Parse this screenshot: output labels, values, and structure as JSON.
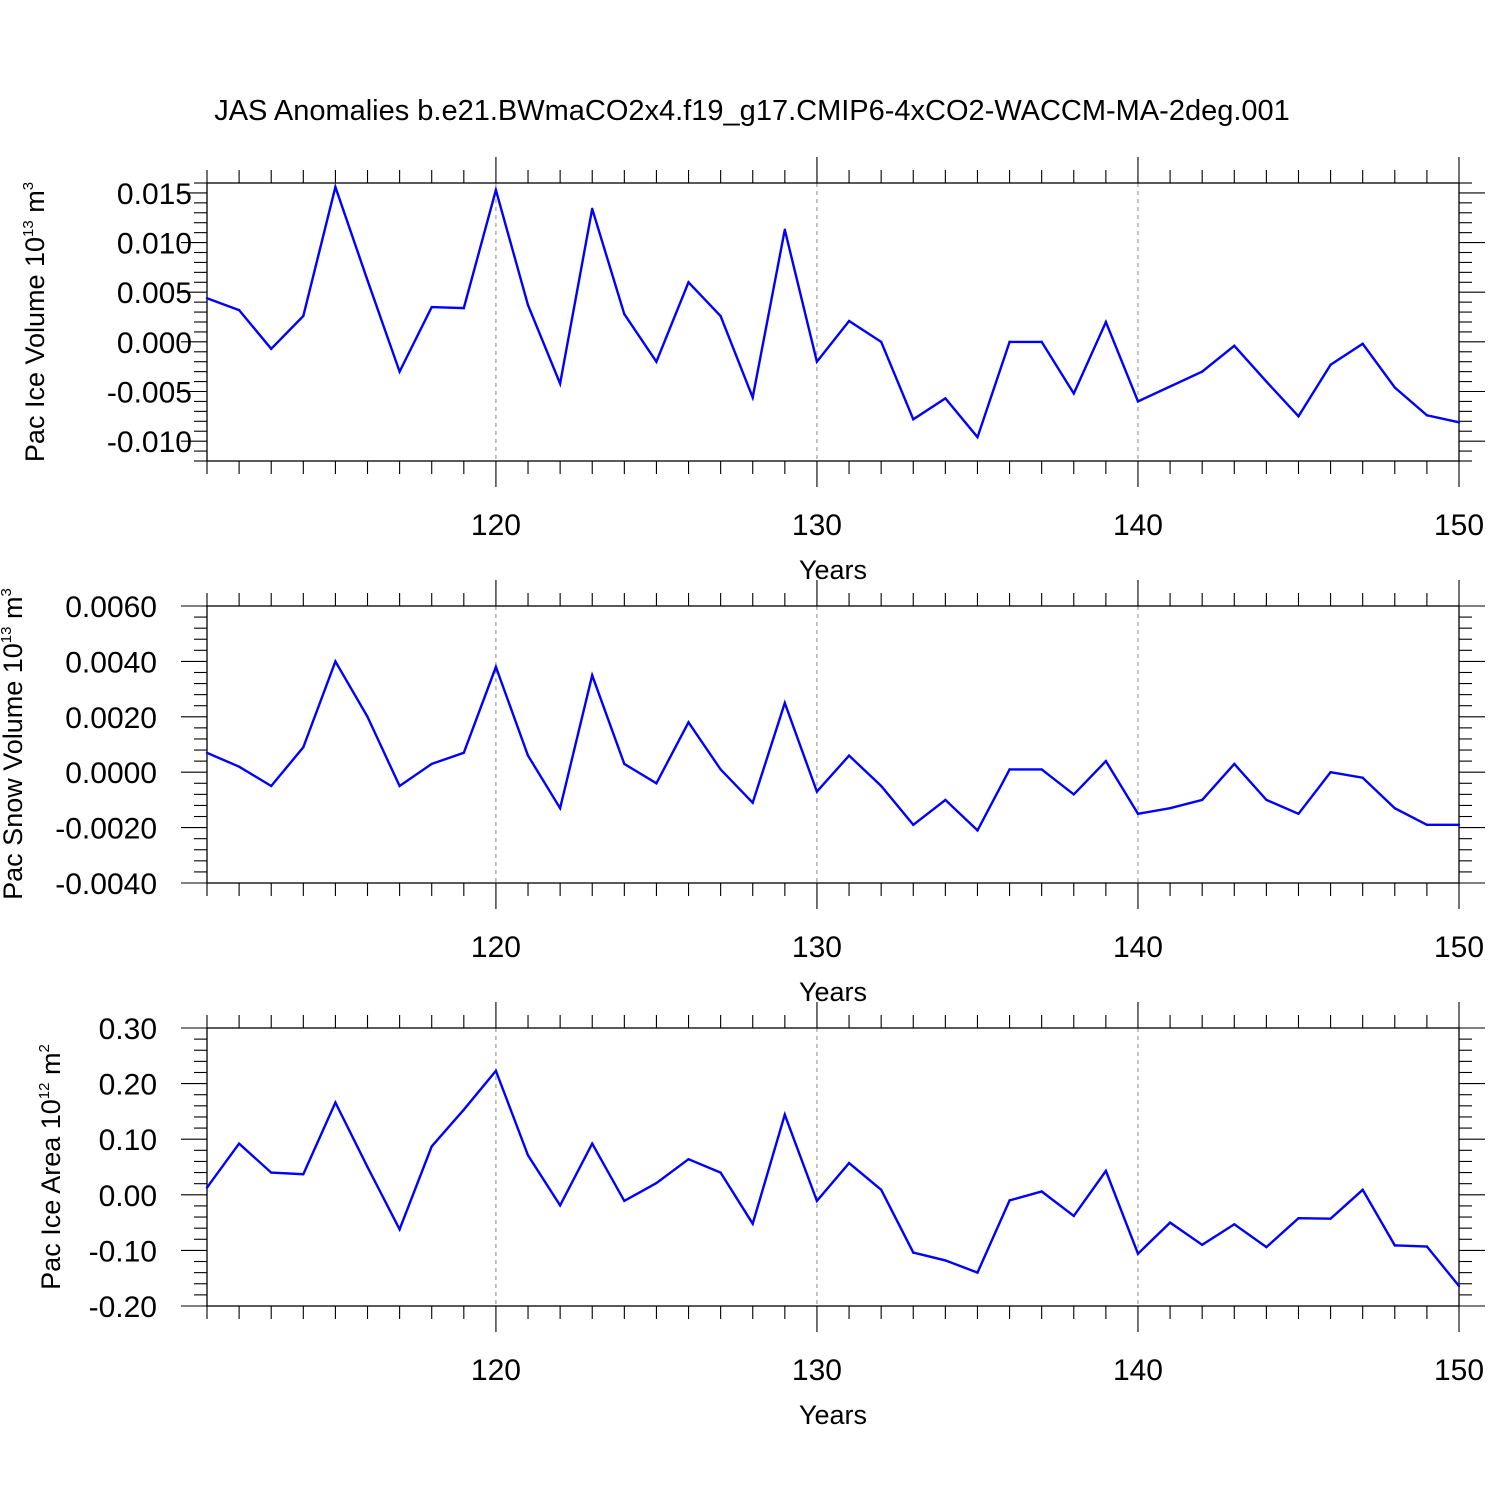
{
  "figure_title": "JAS Anomalies b.e21.BWmaCO2x4.f19_g17.CMIP6-4xCO2-WACCM-MA-2deg.001",
  "colors": {
    "line": "#0000ff",
    "axis": "#000000",
    "grid": "#888888"
  },
  "chart_data": [
    {
      "type": "line",
      "title": "JAS Anomalies b.e21.BWmaCO2x4.f19_g17.CMIP6-4xCO2-WACCM-MA-2deg.001",
      "xlabel": "Years",
      "ylabel": {
        "main": "Pac Ice Volume 10",
        "sup": "13",
        "unit": " m",
        "unit_sup": "3"
      },
      "xlim": [
        111,
        150
      ],
      "ylim": [
        -0.012,
        0.016
      ],
      "xticks": [
        120,
        130,
        140,
        150
      ],
      "xtick_labels": [
        "120",
        "130",
        "140",
        "150"
      ],
      "yticks": [
        -0.01,
        -0.005,
        0,
        0.005,
        0.01,
        0.015
      ],
      "ytick_labels": [
        "-0.010",
        "-0.005",
        "0.000",
        "0.005",
        "0.010",
        "0.015"
      ],
      "x": [
        111,
        112,
        113,
        114,
        115,
        116,
        117,
        118,
        119,
        120,
        121,
        122,
        123,
        124,
        125,
        126,
        127,
        128,
        129,
        130,
        131,
        132,
        133,
        134,
        135,
        136,
        137,
        138,
        139,
        140,
        141,
        142,
        143,
        144,
        145,
        146,
        147,
        148,
        149,
        150
      ],
      "values": [
        0.0044,
        0.0032,
        -0.0007,
        0.0026,
        0.0156,
        0.0062,
        -0.003,
        0.0035,
        0.0034,
        0.0153,
        0.0037,
        -0.0042,
        0.0134,
        0.0028,
        -0.002,
        0.006,
        0.0026,
        -0.0056,
        0.0113,
        -0.002,
        0.0021,
        0.0,
        -0.0078,
        -0.0057,
        -0.0096,
        0.0,
        0.0,
        -0.0052,
        0.002,
        -0.006,
        -0.0045,
        -0.003,
        -0.0004,
        -0.004,
        -0.0075,
        -0.0023,
        -0.0002,
        -0.0046,
        -0.0074,
        -0.0081
      ],
      "grid": "dashed vertical at major x ticks"
    },
    {
      "type": "line",
      "xlabel": "Years",
      "ylabel": {
        "main": "Pac Snow Volume 10",
        "sup": "13",
        "unit": " m",
        "unit_sup": "3"
      },
      "xlim": [
        111,
        150
      ],
      "ylim": [
        -0.004,
        0.006
      ],
      "xticks": [
        120,
        130,
        140,
        150
      ],
      "xtick_labels": [
        "120",
        "130",
        "140",
        "150"
      ],
      "yticks": [
        -0.004,
        -0.002,
        0,
        0.002,
        0.004,
        0.006
      ],
      "ytick_labels": [
        "-0.0040",
        "-0.0020",
        "0.0000",
        "0.0020",
        "0.0040",
        "0.0060"
      ],
      "x": [
        111,
        112,
        113,
        114,
        115,
        116,
        117,
        118,
        119,
        120,
        121,
        122,
        123,
        124,
        125,
        126,
        127,
        128,
        129,
        130,
        131,
        132,
        133,
        134,
        135,
        136,
        137,
        138,
        139,
        140,
        141,
        142,
        143,
        144,
        145,
        146,
        147,
        148,
        149,
        150
      ],
      "values": [
        0.0007,
        0.0002,
        -0.0005,
        0.0009,
        0.004,
        0.002,
        -0.0005,
        0.0003,
        0.0007,
        0.0038,
        0.0006,
        -0.0013,
        0.0035,
        0.0003,
        -0.0004,
        0.0018,
        0.0001,
        -0.0011,
        0.0025,
        -0.0007,
        0.0006,
        -0.0005,
        -0.0019,
        -0.001,
        -0.0021,
        0.0001,
        0.0001,
        -0.0008,
        0.0004,
        -0.0015,
        -0.0013,
        -0.001,
        0.0003,
        -0.001,
        -0.0015,
        0.0,
        -0.0002,
        -0.0013,
        -0.0019,
        -0.0019
      ],
      "grid": "dashed vertical at major x ticks"
    },
    {
      "type": "line",
      "xlabel": "Years",
      "ylabel": {
        "main": "Pac Ice Area 10",
        "sup": "12",
        "unit": " m",
        "unit_sup": "2"
      },
      "xlim": [
        111,
        150
      ],
      "ylim": [
        -0.2,
        0.3
      ],
      "xticks": [
        120,
        130,
        140,
        150
      ],
      "xtick_labels": [
        "120",
        "130",
        "140",
        "150"
      ],
      "yticks": [
        -0.2,
        -0.1,
        0,
        0.1,
        0.2,
        0.3
      ],
      "ytick_labels": [
        "-0.20",
        "-0.10",
        "0.00",
        "0.10",
        "0.20",
        "0.30"
      ],
      "x": [
        111,
        112,
        113,
        114,
        115,
        116,
        117,
        118,
        119,
        120,
        121,
        122,
        123,
        124,
        125,
        126,
        127,
        128,
        129,
        130,
        131,
        132,
        133,
        134,
        135,
        136,
        137,
        138,
        139,
        140,
        141,
        142,
        143,
        144,
        145,
        146,
        147,
        148,
        149,
        150
      ],
      "values": [
        0.013,
        0.092,
        0.04,
        0.037,
        0.166,
        0.05,
        -0.062,
        0.087,
        0.153,
        0.223,
        0.071,
        -0.019,
        0.092,
        -0.011,
        0.021,
        0.064,
        0.04,
        -0.052,
        0.144,
        -0.011,
        0.057,
        0.009,
        -0.104,
        -0.118,
        -0.14,
        -0.01,
        0.006,
        -0.038,
        0.043,
        -0.106,
        -0.05,
        -0.09,
        -0.053,
        -0.094,
        -0.042,
        -0.043,
        0.009,
        -0.091,
        -0.093,
        -0.164
      ],
      "grid": "dashed vertical at major x ticks"
    }
  ]
}
